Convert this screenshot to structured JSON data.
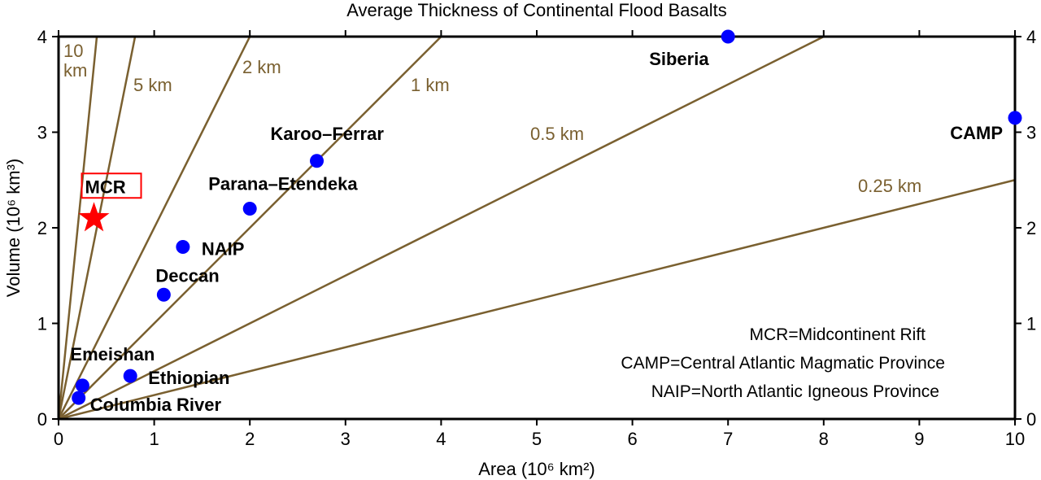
{
  "chart_data": {
    "type": "scatter",
    "title": "Average Thickness of Continental Flood Basalts",
    "xlabel": "Area (10⁶ km²)",
    "ylabel": "Volume (10⁶ km³)",
    "xlim": [
      0,
      10
    ],
    "ylim": [
      0,
      4
    ],
    "xticks": [
      "0",
      "1",
      "2",
      "3",
      "4",
      "5",
      "6",
      "7",
      "8",
      "9",
      "10"
    ],
    "yticks": [
      "0",
      "1",
      "2",
      "3",
      "4"
    ],
    "grid": false,
    "colors": {
      "points": "#0000ff",
      "lines": "#7a6030",
      "mcr": "#ff0000"
    },
    "points": [
      {
        "name": "Siberia",
        "x": 7.0,
        "y": 4.0
      },
      {
        "name": "CAMP",
        "x": 10.0,
        "y": 3.15
      },
      {
        "name": "Karoo–Ferrar",
        "x": 2.7,
        "y": 2.7
      },
      {
        "name": "Parana–Etendeka",
        "x": 2.0,
        "y": 2.2
      },
      {
        "name": "NAIP",
        "x": 1.3,
        "y": 1.8
      },
      {
        "name": "Deccan",
        "x": 1.1,
        "y": 1.3
      },
      {
        "name": "Ethiopian",
        "x": 0.75,
        "y": 0.45
      },
      {
        "name": "Emeishan",
        "x": 0.25,
        "y": 0.35
      },
      {
        "name": "Columbia River",
        "x": 0.21,
        "y": 0.22
      }
    ],
    "highlight": {
      "name": "MCR",
      "x": 0.37,
      "y": 2.1,
      "marker": "star"
    },
    "thickness_lines": [
      {
        "label": "10 km",
        "thickness_km": 10
      },
      {
        "label": "5 km",
        "thickness_km": 5
      },
      {
        "label": "2 km",
        "thickness_km": 2
      },
      {
        "label": "1 km",
        "thickness_km": 1
      },
      {
        "label": "0.5 km",
        "thickness_km": 0.5
      },
      {
        "label": "0.25 km",
        "thickness_km": 0.25
      }
    ],
    "annotations": [
      "MCR=Midcontinent Rift",
      "CAMP=Central Atlantic Magmatic Province",
      "NAIP=North Atlantic Igneous Province"
    ]
  }
}
